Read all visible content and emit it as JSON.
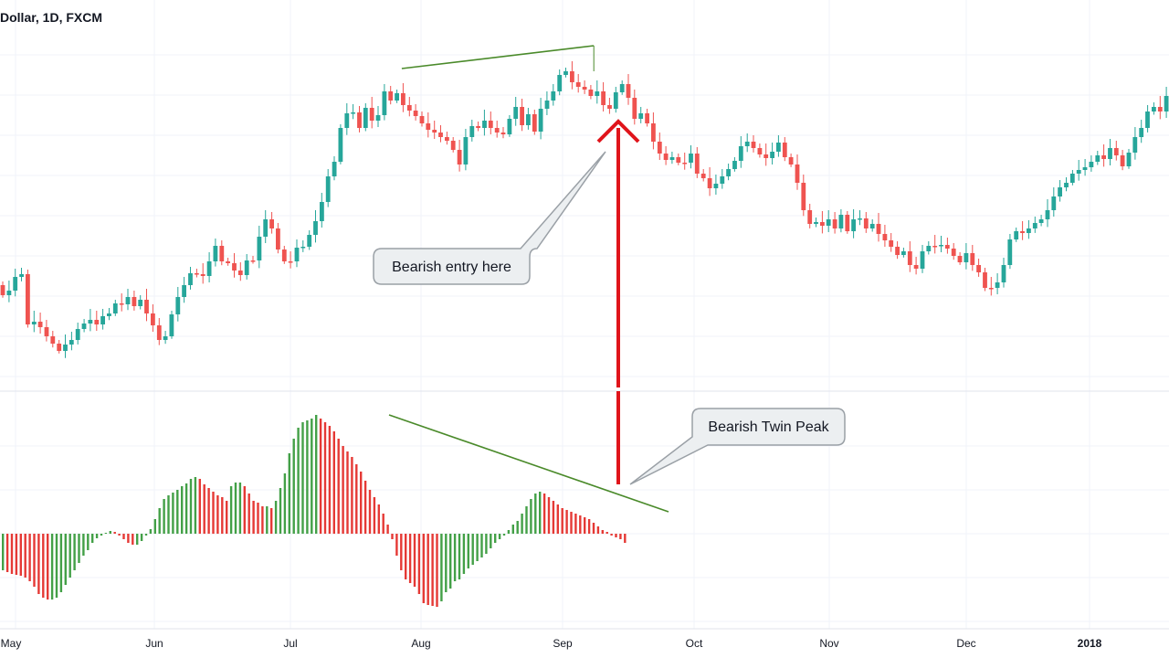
{
  "header": {
    "symbol_title": "Dollar, 1D, FXCM"
  },
  "colors": {
    "up": "#26a69a",
    "down": "#ef5350",
    "hist_up": "#43a047",
    "hist_down": "#e53935",
    "trendline": "#4a8a2a",
    "arrow": "#e0141b",
    "callout_fill": "#eceff1",
    "callout_stroke": "#9aa0a6",
    "grid": "#f0f3fa",
    "separator": "#e0e3eb"
  },
  "annotations": {
    "entry_label": "Bearish entry here",
    "twin_peak_label": "Bearish Twin Peak"
  },
  "chart_data": [
    {
      "type": "candlestick",
      "title": "Dollar, 1D, FXCM",
      "x_axis": [
        "May",
        "Jun",
        "Jul",
        "Aug",
        "Sep",
        "Oct",
        "Nov",
        "Dec",
        "2018"
      ],
      "grid": true,
      "trendline": {
        "from_index": 61,
        "to_index": 92,
        "label": ""
      },
      "candles": [
        [
          0,
          312,
          323
        ],
        [
          1,
          323,
          318
        ],
        [
          2,
          318,
          303
        ],
        [
          3,
          303,
          300
        ],
        [
          4,
          300,
          355
        ],
        [
          5,
          355,
          352
        ],
        [
          6,
          352,
          358
        ],
        [
          7,
          358,
          368
        ],
        [
          8,
          368,
          376
        ],
        [
          9,
          376,
          384
        ],
        [
          10,
          384,
          377
        ],
        [
          11,
          377,
          372
        ],
        [
          12,
          372,
          360
        ],
        [
          13,
          360,
          354
        ],
        [
          14,
          354,
          350
        ],
        [
          15,
          350,
          355
        ],
        [
          16,
          355,
          346
        ],
        [
          17,
          346,
          343
        ],
        [
          18,
          343,
          332
        ],
        [
          19,
          332,
          333
        ],
        [
          20,
          333,
          325
        ],
        [
          21,
          325,
          335
        ],
        [
          22,
          335,
          328
        ],
        [
          23,
          328,
          343
        ],
        [
          24,
          343,
          356
        ],
        [
          25,
          356,
          372
        ],
        [
          26,
          372,
          368
        ],
        [
          27,
          368,
          344
        ],
        [
          28,
          344,
          325
        ],
        [
          29,
          325,
          312
        ],
        [
          30,
          312,
          299
        ],
        [
          31,
          299,
          300
        ],
        [
          32,
          300,
          302
        ],
        [
          33,
          302,
          286
        ],
        [
          34,
          286,
          269
        ],
        [
          35,
          269,
          286
        ],
        [
          36,
          286,
          288
        ],
        [
          37,
          288,
          296
        ],
        [
          38,
          296,
          301
        ],
        [
          39,
          301,
          285
        ],
        [
          40,
          285,
          285
        ],
        [
          41,
          285,
          259
        ],
        [
          42,
          259,
          240
        ],
        [
          43,
          240,
          250
        ],
        [
          44,
          250,
          273
        ],
        [
          45,
          273,
          286
        ],
        [
          46,
          286,
          286
        ],
        [
          47,
          286,
          271
        ],
        [
          48,
          271,
          270
        ],
        [
          49,
          270,
          257
        ],
        [
          50,
          257,
          242
        ],
        [
          51,
          242,
          221
        ],
        [
          52,
          221,
          193
        ],
        [
          53,
          193,
          177
        ],
        [
          54,
          177,
          140
        ],
        [
          55,
          140,
          124
        ],
        [
          56,
          124,
          123
        ],
        [
          57,
          123,
          140
        ],
        [
          58,
          140,
          118
        ],
        [
          59,
          118,
          132
        ],
        [
          60,
          132,
          126
        ],
        [
          61,
          126,
          100
        ],
        [
          62,
          100,
          110
        ],
        [
          63,
          110,
          102
        ],
        [
          64,
          102,
          115
        ],
        [
          65,
          115,
          121
        ],
        [
          66,
          121,
          127
        ],
        [
          67,
          127,
          135
        ],
        [
          68,
          135,
          142
        ],
        [
          69,
          142,
          145
        ],
        [
          70,
          145,
          150
        ],
        [
          71,
          150,
          154
        ],
        [
          72,
          154,
          164
        ],
        [
          73,
          164,
          180
        ],
        [
          74,
          180,
          150
        ],
        [
          75,
          150,
          138
        ],
        [
          76,
          138,
          140
        ],
        [
          77,
          140,
          132
        ],
        [
          78,
          132,
          140
        ],
        [
          79,
          140,
          145
        ],
        [
          80,
          145,
          147
        ],
        [
          81,
          147,
          130
        ],
        [
          82,
          130,
          117
        ],
        [
          83,
          117,
          137
        ],
        [
          84,
          137,
          125
        ],
        [
          85,
          125,
          144
        ],
        [
          86,
          144,
          119
        ],
        [
          87,
          119,
          110
        ],
        [
          88,
          110,
          100
        ],
        [
          89,
          100,
          82
        ],
        [
          90,
          82,
          78
        ],
        [
          91,
          78,
          90
        ],
        [
          92,
          90,
          95
        ],
        [
          93,
          95,
          98
        ],
        [
          94,
          98,
          105
        ],
        [
          95,
          105,
          100
        ],
        [
          96,
          100,
          115
        ],
        [
          97,
          115,
          119
        ],
        [
          98,
          119,
          101
        ],
        [
          99,
          101,
          92
        ],
        [
          100,
          92,
          107
        ],
        [
          101,
          107,
          130
        ],
        [
          102,
          130,
          124
        ],
        [
          103,
          124,
          135
        ],
        [
          104,
          135,
          155
        ],
        [
          105,
          155,
          168
        ],
        [
          106,
          168,
          175
        ],
        [
          107,
          175,
          172
        ],
        [
          108,
          172,
          178
        ],
        [
          109,
          178,
          178
        ],
        [
          110,
          178,
          168
        ],
        [
          111,
          168,
          190
        ],
        [
          112,
          190,
          195
        ],
        [
          113,
          195,
          206
        ],
        [
          114,
          206,
          201
        ],
        [
          115,
          201,
          193
        ],
        [
          116,
          193,
          185
        ],
        [
          117,
          185,
          176
        ],
        [
          118,
          176,
          160
        ],
        [
          119,
          160,
          155
        ],
        [
          120,
          155,
          162
        ],
        [
          121,
          162,
          169
        ],
        [
          122,
          169,
          173
        ],
        [
          123,
          173,
          166
        ],
        [
          124,
          166,
          156
        ],
        [
          125,
          156,
          172
        ],
        [
          126,
          172,
          180
        ],
        [
          127,
          180,
          200
        ],
        [
          128,
          200,
          230
        ],
        [
          129,
          230,
          245
        ],
        [
          130,
          245,
          243
        ],
        [
          131,
          243,
          247
        ],
        [
          132,
          247,
          240
        ],
        [
          133,
          240,
          250
        ],
        [
          134,
          250,
          235
        ],
        [
          135,
          235,
          253
        ],
        [
          136,
          253,
          240
        ],
        [
          137,
          240,
          239
        ],
        [
          138,
          239,
          250
        ],
        [
          139,
          250,
          245
        ],
        [
          140,
          245,
          256
        ],
        [
          141,
          256,
          263
        ],
        [
          142,
          263,
          270
        ],
        [
          143,
          270,
          279
        ],
        [
          144,
          279,
          275
        ],
        [
          145,
          275,
          290
        ],
        [
          146,
          290,
          294
        ],
        [
          147,
          294,
          275
        ],
        [
          148,
          275,
          269
        ],
        [
          149,
          269,
          269
        ],
        [
          150,
          269,
          268
        ],
        [
          151,
          268,
          272
        ],
        [
          152,
          272,
          280
        ],
        [
          153,
          280,
          287
        ],
        [
          154,
          287,
          277
        ],
        [
          155,
          277,
          290
        ],
        [
          156,
          290,
          298
        ],
        [
          157,
          298,
          315
        ],
        [
          158,
          315,
          315
        ],
        [
          159,
          315,
          309
        ],
        [
          160,
          309,
          290
        ],
        [
          161,
          290,
          262
        ],
        [
          162,
          262,
          253
        ],
        [
          163,
          253,
          255
        ],
        [
          164,
          255,
          250
        ],
        [
          165,
          250,
          244
        ],
        [
          166,
          244,
          240
        ],
        [
          167,
          240,
          230
        ],
        [
          168,
          230,
          215
        ],
        [
          169,
          215,
          205
        ],
        [
          170,
          205,
          200
        ],
        [
          171,
          200,
          190
        ],
        [
          172,
          190,
          186
        ],
        [
          173,
          186,
          183
        ],
        [
          174,
          183,
          177
        ],
        [
          175,
          177,
          170
        ],
        [
          176,
          170,
          174
        ],
        [
          177,
          174,
          162
        ],
        [
          178,
          162,
          170
        ],
        [
          179,
          170,
          182
        ],
        [
          180,
          182,
          167
        ],
        [
          181,
          167,
          150
        ],
        [
          182,
          150,
          140
        ],
        [
          183,
          140,
          122
        ],
        [
          184,
          122,
          117
        ],
        [
          185,
          117,
          122
        ],
        [
          186,
          122,
          105
        ]
      ]
    },
    {
      "type": "histogram",
      "title": "",
      "trendline": {
        "from_index": 61,
        "to_index": 107,
        "label": ""
      },
      "bars": [
        -40,
        -42,
        -44,
        -45,
        -46,
        -48,
        -52,
        -58,
        -66,
        -70,
        -72,
        -72,
        -70,
        -64,
        -56,
        -48,
        -40,
        -32,
        -24,
        -18,
        -10,
        -5,
        -2,
        1,
        3,
        2,
        -2,
        -6,
        -10,
        -12,
        -12,
        -8,
        -2,
        5,
        16,
        28,
        38,
        42,
        45,
        48,
        52,
        55,
        60,
        62,
        60,
        54,
        50,
        46,
        42,
        40,
        36,
        52,
        56,
        56,
        52,
        44,
        36,
        34,
        30,
        30,
        28,
        36,
        50,
        66,
        88,
        104,
        116,
        122,
        124,
        126,
        130,
        126,
        122,
        118,
        112,
        104,
        96,
        90,
        84,
        76,
        68,
        58,
        48,
        40,
        32,
        22,
        10,
        -6,
        -24,
        -40,
        -50,
        -54,
        -58,
        -66,
        -76,
        -78,
        -79,
        -80,
        -74,
        -64,
        -60,
        -52,
        -50,
        -44,
        -38,
        -34,
        -30,
        -26,
        -22,
        -16,
        -10,
        -6,
        -2,
        4,
        10,
        14,
        22,
        30,
        38,
        44,
        46,
        44,
        40,
        36,
        32,
        28,
        26,
        24,
        22,
        20,
        18,
        16,
        12,
        8,
        4,
        2,
        -2,
        -4,
        -6,
        -10
      ]
    }
  ]
}
